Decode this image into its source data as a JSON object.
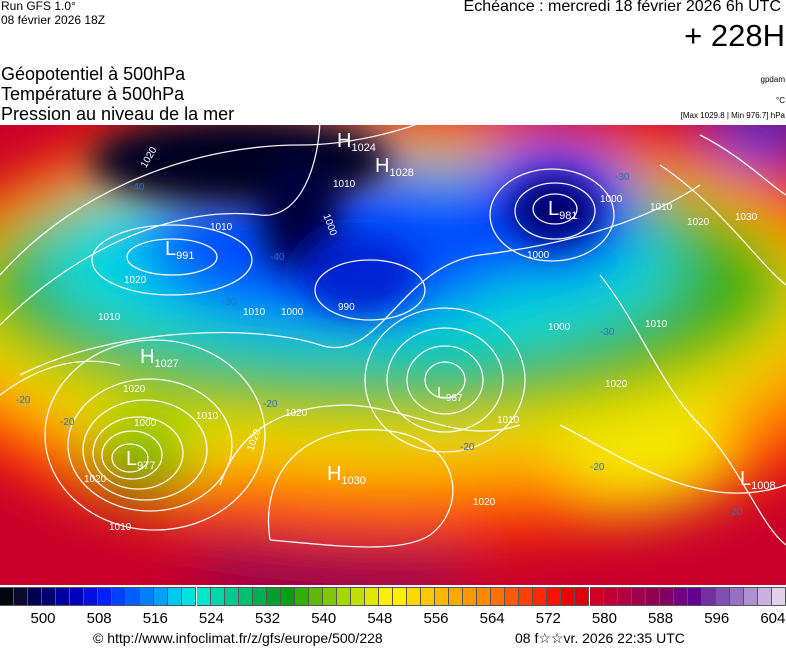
{
  "header": {
    "run": "Run GFS 1.0°",
    "run_date": "08 février 2026 18Z",
    "echeance": "Echéance : mercredi 18 février 2026 6h UTC",
    "lead_time": "+ 228H"
  },
  "titles": [
    "Géopotentiel à 500hPa",
    "Température à 500hPa",
    "Pression au niveau de la mer"
  ],
  "units": {
    "geopotential": "gpdam",
    "temperature": "°C",
    "pressure_range": "[Max 1029.8 | Min 976.7] hPa"
  },
  "map": {
    "centers": [
      {
        "type": "H",
        "value": "1024"
      },
      {
        "type": "H",
        "value": "1028"
      },
      {
        "type": "L",
        "value": "981"
      },
      {
        "type": "L",
        "value": "991"
      },
      {
        "type": "H",
        "value": "1027"
      },
      {
        "type": "L",
        "value": "977"
      },
      {
        "type": "H",
        "value": "1030"
      },
      {
        "type": "L",
        "value": "1008"
      },
      {
        "type": "L",
        "value": "987"
      }
    ],
    "isobar_labels": [
      "1020",
      "1010",
      "1010",
      "1000",
      "1010",
      "1000",
      "990",
      "1010",
      "1020",
      "1000",
      "1010",
      "1020",
      "1030",
      "1000",
      "1000",
      "1010",
      "1020",
      "1010",
      "1000",
      "1010",
      "1020",
      "1020",
      "1010",
      "1020",
      "1020",
      "1020"
    ],
    "isotherm_labels": [
      "-40",
      "-40",
      "-30",
      "-30",
      "-30",
      "-20",
      "-20",
      "-20",
      "-20",
      "-20",
      "-20"
    ]
  },
  "colorbar": {
    "colors": [
      "#050510",
      "#0a0a30",
      "#000050",
      "#000070",
      "#0000a0",
      "#0000c0",
      "#0010e0",
      "#0020ff",
      "#0040ff",
      "#0060ff",
      "#0080ff",
      "#00a0ff",
      "#00c8f0",
      "#00e0e0",
      "#00e8c8",
      "#00d8a8",
      "#00c890",
      "#00c070",
      "#00b050",
      "#00a030",
      "#00a010",
      "#30b000",
      "#60b800",
      "#80c800",
      "#a0d800",
      "#c0e000",
      "#e0e800",
      "#f8f000",
      "#fff000",
      "#ffd800",
      "#ffc800",
      "#ffb800",
      "#ffa800",
      "#ff9800",
      "#ff8800",
      "#ff7000",
      "#ff5800",
      "#ff4000",
      "#ff2800",
      "#ff1000",
      "#f00000",
      "#e00010",
      "#d00020",
      "#c00030",
      "#b00040",
      "#a00050",
      "#900050",
      "#800060",
      "#700080",
      "#600090",
      "#7030a0",
      "#8050b0",
      "#9870c0",
      "#b090d0",
      "#c8b0e0",
      "#e0d0e8"
    ],
    "ticks": [
      "500",
      "508",
      "516",
      "524",
      "532",
      "540",
      "548",
      "556",
      "564",
      "572",
      "580",
      "588",
      "596",
      "604"
    ]
  },
  "footer": {
    "copyright": "© http://www.infoclimat.fr/z/gfs/europe/500/228",
    "generated": "08 f☆☆vr. 2026 22:35 UTC"
  }
}
